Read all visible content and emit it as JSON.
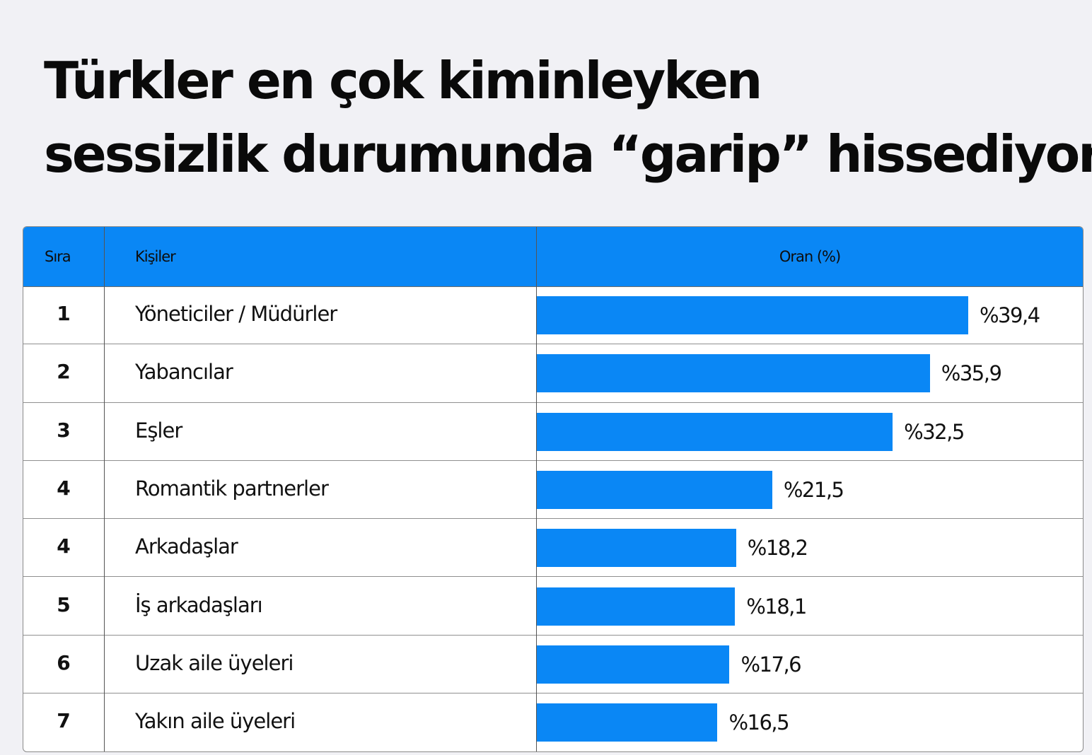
{
  "title_line1": "Türkler en çok kiminleyken",
  "title_line2": "sessizlik durumunda “garip” hissediyor?",
  "table": {
    "col_rank": "Sıra",
    "col_people": "Kişiler",
    "col_rate": "Oran (%)"
  },
  "colors": {
    "accent": "#0a87f5",
    "background": "#f1f1f5"
  },
  "chart_data": {
    "type": "bar",
    "orientation": "horizontal",
    "xlim": [
      0,
      50
    ],
    "rows": [
      {
        "rank": "1",
        "label": "Yöneticiler / Müdürler",
        "value": 39.4,
        "value_label": "%39,4"
      },
      {
        "rank": "2",
        "label": "Yabancılar",
        "value": 35.9,
        "value_label": "%35,9"
      },
      {
        "rank": "3",
        "label": "Eşler",
        "value": 32.5,
        "value_label": "%32,5"
      },
      {
        "rank": "4",
        "label": "Romantik partnerler",
        "value": 21.5,
        "value_label": "%21,5"
      },
      {
        "rank": "4",
        "label": "Arkadaşlar",
        "value": 18.2,
        "value_label": "%18,2"
      },
      {
        "rank": "5",
        "label": "İş arkadaşları",
        "value": 18.1,
        "value_label": "%18,1"
      },
      {
        "rank": "6",
        "label": "Uzak aile üyeleri",
        "value": 17.6,
        "value_label": "%17,6"
      },
      {
        "rank": "7",
        "label": "Yakın aile üyeleri",
        "value": 16.5,
        "value_label": "%16,5"
      }
    ]
  }
}
